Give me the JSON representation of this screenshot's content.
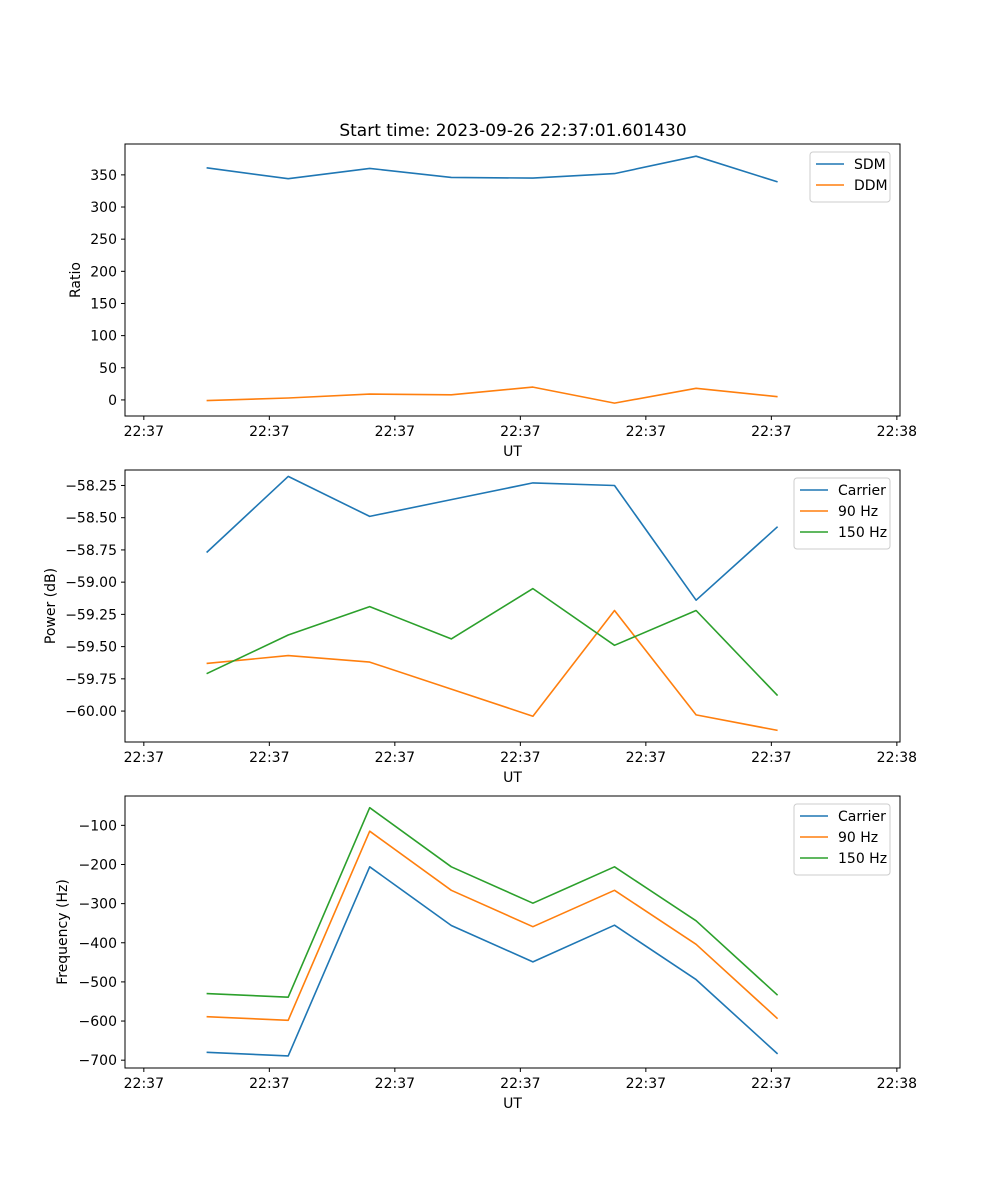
{
  "figure_title": "Start time: 2023-09-26 22:37:01.601430",
  "colors": {
    "blue": "#1f77b4",
    "orange": "#ff7f0e",
    "green": "#2ca02c"
  },
  "chart_data": [
    {
      "type": "line",
      "title": "Start time: 2023-09-26 22:37:01.601430",
      "xlabel": "UT",
      "ylabel": "Ratio",
      "x_ticks": [
        0,
        2,
        4,
        6,
        8,
        10,
        12
      ],
      "x_tick_labels": [
        "22:37",
        "22:37",
        "22:37",
        "22:37",
        "22:37",
        "22:37",
        "22:38"
      ],
      "x": [
        1.0,
        2.3,
        3.6,
        4.9,
        6.2,
        7.5,
        8.8,
        10.1
      ],
      "xlim": [
        -0.3,
        12.05
      ],
      "ylim": [
        -25,
        398
      ],
      "y_ticks": [
        0,
        50,
        100,
        150,
        200,
        250,
        300,
        350
      ],
      "y_tick_labels": [
        "0",
        "50",
        "100",
        "150",
        "200",
        "250",
        "300",
        "350"
      ],
      "legend_position": "top-right",
      "series": [
        {
          "name": "SDM",
          "color": "#1f77b4",
          "values": [
            361,
            344,
            360,
            346,
            345,
            352,
            379,
            339
          ]
        },
        {
          "name": "DDM",
          "color": "#ff7f0e",
          "values": [
            -1,
            3,
            9,
            8,
            20,
            -5,
            18,
            5
          ]
        }
      ]
    },
    {
      "type": "line",
      "xlabel": "UT",
      "ylabel": "Power (dB)",
      "x_ticks": [
        0,
        2,
        4,
        6,
        8,
        10,
        12
      ],
      "x_tick_labels": [
        "22:37",
        "22:37",
        "22:37",
        "22:37",
        "22:37",
        "22:37",
        "22:38"
      ],
      "x": [
        1.0,
        2.3,
        3.6,
        4.9,
        6.2,
        7.5,
        8.8,
        10.1
      ],
      "xlim": [
        -0.3,
        12.05
      ],
      "ylim": [
        -60.24,
        -58.13
      ],
      "y_ticks": [
        -58.25,
        -58.5,
        -58.75,
        -59.0,
        -59.25,
        -59.5,
        -59.75,
        -60.0
      ],
      "y_tick_labels": [
        "−58.25",
        "−58.50",
        "−58.75",
        "−59.00",
        "−59.25",
        "−59.50",
        "−59.75",
        "−60.00"
      ],
      "legend_position": "top-right",
      "series": [
        {
          "name": "Carrier",
          "color": "#1f77b4",
          "values": [
            -58.77,
            -58.18,
            -58.49,
            -58.36,
            -58.23,
            -58.25,
            -59.14,
            -58.57
          ]
        },
        {
          "name": "90 Hz",
          "color": "#ff7f0e",
          "values": [
            -59.63,
            -59.57,
            -59.62,
            -59.83,
            -60.04,
            -59.22,
            -60.03,
            -60.15
          ]
        },
        {
          "name": "150 Hz",
          "color": "#2ca02c",
          "values": [
            -59.71,
            -59.41,
            -59.19,
            -59.44,
            -59.05,
            -59.49,
            -59.22,
            -59.88
          ]
        }
      ]
    },
    {
      "type": "line",
      "xlabel": "UT",
      "ylabel": "Frequency (Hz)",
      "x_ticks": [
        0,
        2,
        4,
        6,
        8,
        10,
        12
      ],
      "x_tick_labels": [
        "22:37",
        "22:37",
        "22:37",
        "22:37",
        "22:37",
        "22:37",
        "22:38"
      ],
      "x": [
        1.0,
        2.3,
        3.6,
        4.9,
        6.2,
        7.5,
        8.8,
        10.1
      ],
      "xlim": [
        -0.3,
        12.05
      ],
      "ylim": [
        -720,
        -25
      ],
      "y_ticks": [
        -100,
        -200,
        -300,
        -400,
        -500,
        -600,
        -700
      ],
      "y_tick_labels": [
        "−100",
        "−200",
        "−300",
        "−400",
        "−500",
        "−600",
        "−700"
      ],
      "legend_position": "top-right",
      "series": [
        {
          "name": "Carrier",
          "color": "#1f77b4",
          "values": [
            -680,
            -689,
            -206,
            -356,
            -449,
            -355,
            -494,
            -684
          ]
        },
        {
          "name": "90 Hz",
          "color": "#ff7f0e",
          "values": [
            -589,
            -598,
            -115,
            -266,
            -359,
            -266,
            -404,
            -594
          ]
        },
        {
          "name": "150 Hz",
          "color": "#2ca02c",
          "values": [
            -530,
            -539,
            -55,
            -206,
            -299,
            -206,
            -344,
            -534
          ]
        }
      ]
    }
  ]
}
